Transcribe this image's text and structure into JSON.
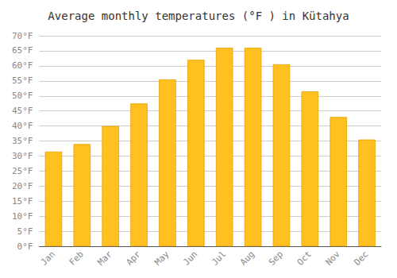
{
  "chart_data": {
    "type": "bar",
    "title": "Average monthly temperatures (°F ) in Kütahya",
    "categories": [
      "Jan",
      "Feb",
      "Mar",
      "Apr",
      "May",
      "Jun",
      "Jul",
      "Aug",
      "Sep",
      "Oct",
      "Nov",
      "Dec"
    ],
    "values": [
      31.5,
      34.0,
      40.0,
      47.5,
      55.5,
      62.0,
      66.0,
      66.0,
      60.5,
      51.5,
      43.0,
      35.5
    ],
    "color": "#FFC020",
    "ylim": [
      0,
      70
    ],
    "yticks": [
      {
        "value": 0,
        "label": "0°F"
      },
      {
        "value": 5,
        "label": "5°F"
      },
      {
        "value": 10,
        "label": "10°F"
      },
      {
        "value": 15,
        "label": "15°F"
      },
      {
        "value": 20,
        "label": "20°F"
      },
      {
        "value": 25,
        "label": "25°F"
      },
      {
        "value": 30,
        "label": "30°F"
      },
      {
        "value": 35,
        "label": "35°F"
      },
      {
        "value": 40,
        "label": "40°F"
      },
      {
        "value": 45,
        "label": "45°F"
      },
      {
        "value": 50,
        "label": "50°F"
      },
      {
        "value": 55,
        "label": "55°F"
      },
      {
        "value": 60,
        "label": "60°F"
      },
      {
        "value": 65,
        "label": "65°F"
      },
      {
        "value": 70,
        "label": "70°F"
      }
    ],
    "grid": true
  }
}
